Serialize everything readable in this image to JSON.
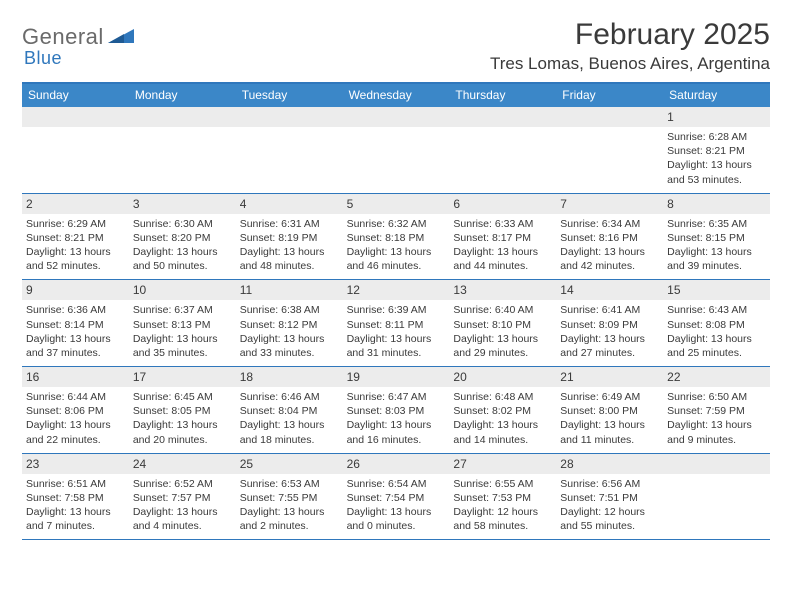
{
  "logo": {
    "text1": "General",
    "text2": "Blue"
  },
  "title": "February 2025",
  "location": "Tres Lomas, Buenos Aires, Argentina",
  "colors": {
    "header_bg": "#3b87c8",
    "header_border": "#2f77bc",
    "daynum_bg": "#ececec",
    "text": "#3a3a3a",
    "logo_gray": "#6a6a6a",
    "logo_blue": "#2f77bc"
  },
  "day_names": [
    "Sunday",
    "Monday",
    "Tuesday",
    "Wednesday",
    "Thursday",
    "Friday",
    "Saturday"
  ],
  "weeks": [
    [
      null,
      null,
      null,
      null,
      null,
      null,
      {
        "d": "1",
        "sr": "6:28 AM",
        "ss": "8:21 PM",
        "dl": "13 hours and 53 minutes."
      }
    ],
    [
      {
        "d": "2",
        "sr": "6:29 AM",
        "ss": "8:21 PM",
        "dl": "13 hours and 52 minutes."
      },
      {
        "d": "3",
        "sr": "6:30 AM",
        "ss": "8:20 PM",
        "dl": "13 hours and 50 minutes."
      },
      {
        "d": "4",
        "sr": "6:31 AM",
        "ss": "8:19 PM",
        "dl": "13 hours and 48 minutes."
      },
      {
        "d": "5",
        "sr": "6:32 AM",
        "ss": "8:18 PM",
        "dl": "13 hours and 46 minutes."
      },
      {
        "d": "6",
        "sr": "6:33 AM",
        "ss": "8:17 PM",
        "dl": "13 hours and 44 minutes."
      },
      {
        "d": "7",
        "sr": "6:34 AM",
        "ss": "8:16 PM",
        "dl": "13 hours and 42 minutes."
      },
      {
        "d": "8",
        "sr": "6:35 AM",
        "ss": "8:15 PM",
        "dl": "13 hours and 39 minutes."
      }
    ],
    [
      {
        "d": "9",
        "sr": "6:36 AM",
        "ss": "8:14 PM",
        "dl": "13 hours and 37 minutes."
      },
      {
        "d": "10",
        "sr": "6:37 AM",
        "ss": "8:13 PM",
        "dl": "13 hours and 35 minutes."
      },
      {
        "d": "11",
        "sr": "6:38 AM",
        "ss": "8:12 PM",
        "dl": "13 hours and 33 minutes."
      },
      {
        "d": "12",
        "sr": "6:39 AM",
        "ss": "8:11 PM",
        "dl": "13 hours and 31 minutes."
      },
      {
        "d": "13",
        "sr": "6:40 AM",
        "ss": "8:10 PM",
        "dl": "13 hours and 29 minutes."
      },
      {
        "d": "14",
        "sr": "6:41 AM",
        "ss": "8:09 PM",
        "dl": "13 hours and 27 minutes."
      },
      {
        "d": "15",
        "sr": "6:43 AM",
        "ss": "8:08 PM",
        "dl": "13 hours and 25 minutes."
      }
    ],
    [
      {
        "d": "16",
        "sr": "6:44 AM",
        "ss": "8:06 PM",
        "dl": "13 hours and 22 minutes."
      },
      {
        "d": "17",
        "sr": "6:45 AM",
        "ss": "8:05 PM",
        "dl": "13 hours and 20 minutes."
      },
      {
        "d": "18",
        "sr": "6:46 AM",
        "ss": "8:04 PM",
        "dl": "13 hours and 18 minutes."
      },
      {
        "d": "19",
        "sr": "6:47 AM",
        "ss": "8:03 PM",
        "dl": "13 hours and 16 minutes."
      },
      {
        "d": "20",
        "sr": "6:48 AM",
        "ss": "8:02 PM",
        "dl": "13 hours and 14 minutes."
      },
      {
        "d": "21",
        "sr": "6:49 AM",
        "ss": "8:00 PM",
        "dl": "13 hours and 11 minutes."
      },
      {
        "d": "22",
        "sr": "6:50 AM",
        "ss": "7:59 PM",
        "dl": "13 hours and 9 minutes."
      }
    ],
    [
      {
        "d": "23",
        "sr": "6:51 AM",
        "ss": "7:58 PM",
        "dl": "13 hours and 7 minutes."
      },
      {
        "d": "24",
        "sr": "6:52 AM",
        "ss": "7:57 PM",
        "dl": "13 hours and 4 minutes."
      },
      {
        "d": "25",
        "sr": "6:53 AM",
        "ss": "7:55 PM",
        "dl": "13 hours and 2 minutes."
      },
      {
        "d": "26",
        "sr": "6:54 AM",
        "ss": "7:54 PM",
        "dl": "13 hours and 0 minutes."
      },
      {
        "d": "27",
        "sr": "6:55 AM",
        "ss": "7:53 PM",
        "dl": "12 hours and 58 minutes."
      },
      {
        "d": "28",
        "sr": "6:56 AM",
        "ss": "7:51 PM",
        "dl": "12 hours and 55 minutes."
      },
      null
    ]
  ],
  "labels": {
    "sunrise": "Sunrise:",
    "sunset": "Sunset:",
    "daylight": "Daylight:"
  }
}
